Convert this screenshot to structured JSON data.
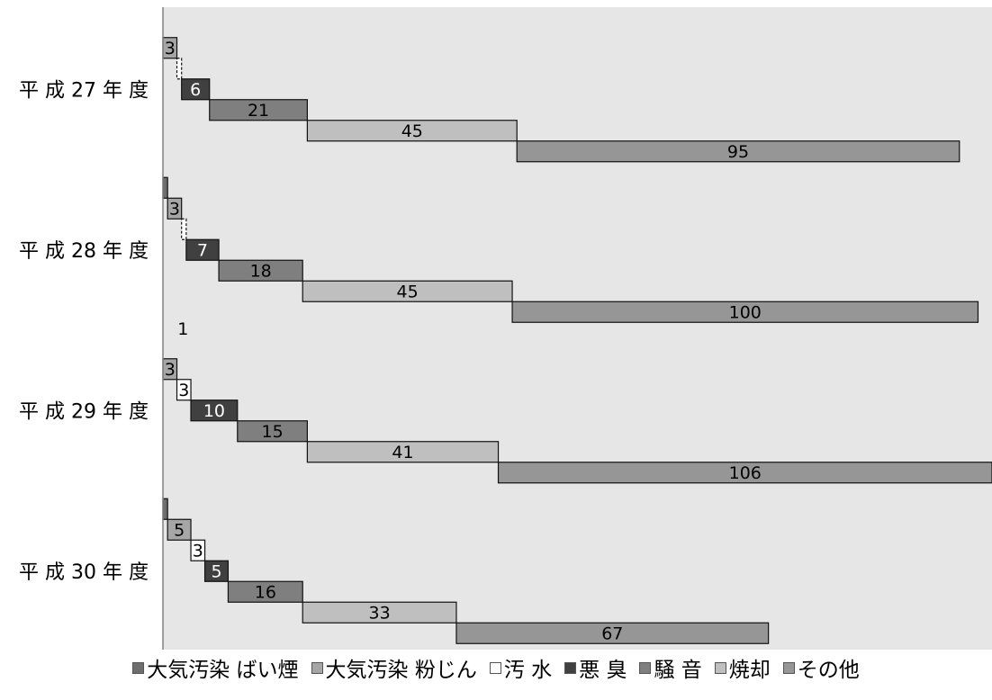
{
  "chart_data": {
    "type": "bar",
    "layout": "horizontal-cascade",
    "categories": [
      "平 成 27 年 度",
      "平 成 28 年 度",
      "平 成 29 年 度",
      "平 成 30 年 度"
    ],
    "series": [
      {
        "name": "大気汚染  ばい煙",
        "values": [
          0,
          1,
          0,
          1
        ],
        "labels": [
          "",
          "",
          "",
          ""
        ],
        "color": "#6e6e6e"
      },
      {
        "name": "大気汚染  粉じん",
        "values": [
          3,
          3,
          3,
          5
        ],
        "labels": [
          "3",
          "3",
          "3",
          "5"
        ],
        "color": "#a6a6a6"
      },
      {
        "name": "汚  水",
        "values": [
          1,
          1,
          3,
          3
        ],
        "labels": [
          "",
          "",
          "3",
          "3"
        ],
        "color": "#ffffff"
      },
      {
        "name": "悪  臭",
        "values": [
          6,
          7,
          10,
          5
        ],
        "labels": [
          "6",
          "7",
          "10",
          "5"
        ],
        "color": "#404040"
      },
      {
        "name": "騒  音",
        "values": [
          21,
          18,
          15,
          16
        ],
        "labels": [
          "21",
          "18",
          "15",
          "16"
        ],
        "color": "#7f7f7f"
      },
      {
        "name": "焼却",
        "values": [
          45,
          45,
          41,
          33
        ],
        "labels": [
          "45",
          "45",
          "41",
          "33"
        ],
        "color": "#bfbfbf"
      },
      {
        "name": "その他",
        "values": [
          95,
          100,
          106,
          67
        ],
        "labels": [
          "95",
          "100",
          "106",
          "67"
        ],
        "color": "#969696"
      }
    ],
    "annotations": [
      {
        "category": "平 成 29 年 度",
        "text": "1"
      }
    ],
    "xlim": [
      0,
      178
    ],
    "plot_background": "#e6e6e6",
    "legend_position": "bottom"
  }
}
